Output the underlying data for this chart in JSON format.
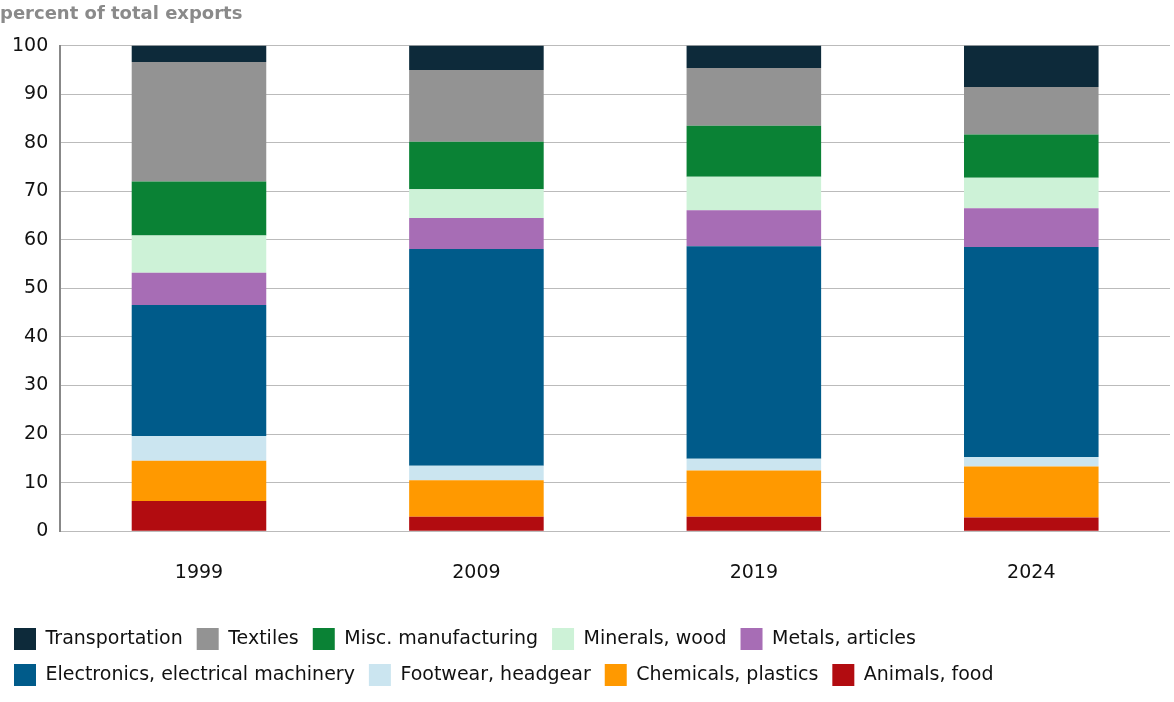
{
  "chart_data": {
    "type": "bar",
    "stacked": true,
    "ylabel": "percent of total exports",
    "categories": [
      "1999",
      "2009",
      "2019",
      "2024"
    ],
    "ylim": [
      0,
      100
    ],
    "yticks": [
      0,
      10,
      20,
      30,
      40,
      50,
      60,
      70,
      80,
      90,
      100
    ],
    "grid": "y",
    "legend": "bottom",
    "series": [
      {
        "name": "Animals, food",
        "color": "#b20c10",
        "values": [
          6.2,
          3.0,
          3.0,
          2.8
        ]
      },
      {
        "name": "Chemicals, plastics",
        "color": "#ff9900",
        "values": [
          8.3,
          7.5,
          9.5,
          10.5
        ]
      },
      {
        "name": "Footwear, headgear",
        "color": "#cbe5f0",
        "values": [
          5.1,
          3.0,
          2.4,
          2.0
        ]
      },
      {
        "name": "Electronics, electrical machinery",
        "color": "#005b8a",
        "values": [
          27.0,
          44.6,
          43.8,
          43.2
        ]
      },
      {
        "name": "Metals, articles",
        "color": "#a76db5",
        "values": [
          6.6,
          6.4,
          7.4,
          8.0
        ]
      },
      {
        "name": "Minerals, wood",
        "color": "#cdf2d7",
        "values": [
          7.7,
          5.9,
          6.9,
          6.3
        ]
      },
      {
        "name": "Misc. manufacturing",
        "color": "#0a8235",
        "values": [
          11.1,
          9.8,
          10.5,
          8.9
        ]
      },
      {
        "name": "Textiles",
        "color": "#939393",
        "values": [
          24.6,
          14.8,
          11.9,
          9.8
        ]
      },
      {
        "name": "Transportation",
        "color": "#0d2a3a",
        "values": [
          3.4,
          5.0,
          4.6,
          8.5
        ]
      }
    ]
  }
}
